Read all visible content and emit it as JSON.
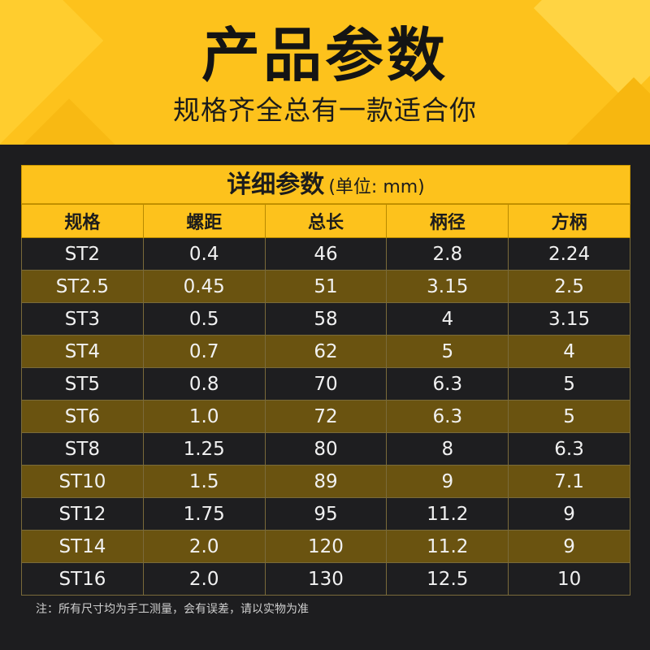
{
  "header": {
    "title": "产品参数",
    "subtitle": "规格齐全总有一款适合你"
  },
  "table": {
    "title": "详细参数",
    "unit": "(单位: mm)",
    "columns": [
      "规格",
      "螺距",
      "总长",
      "柄径",
      "方柄"
    ],
    "rows": [
      [
        "ST2",
        "0.4",
        "46",
        "2.8",
        "2.24"
      ],
      [
        "ST2.5",
        "0.45",
        "51",
        "3.15",
        "2.5"
      ],
      [
        "ST3",
        "0.5",
        "58",
        "4",
        "3.15"
      ],
      [
        "ST4",
        "0.7",
        "62",
        "5",
        "4"
      ],
      [
        "ST5",
        "0.8",
        "70",
        "6.3",
        "5"
      ],
      [
        "ST6",
        "1.0",
        "72",
        "6.3",
        "5"
      ],
      [
        "ST8",
        "1.25",
        "80",
        "8",
        "6.3"
      ],
      [
        "ST10",
        "1.5",
        "89",
        "9",
        "7.1"
      ],
      [
        "ST12",
        "1.75",
        "95",
        "11.2",
        "9"
      ],
      [
        "ST14",
        "2.0",
        "120",
        "11.2",
        "9"
      ],
      [
        "ST16",
        "2.0",
        "130",
        "12.5",
        "10"
      ]
    ]
  },
  "note": "注：所有尺寸均为手工测量，会有误差，请以实物为准",
  "colors": {
    "accent": "#fdc21c",
    "row_dark": "#1e1e20",
    "row_gold": "#6a5310"
  }
}
